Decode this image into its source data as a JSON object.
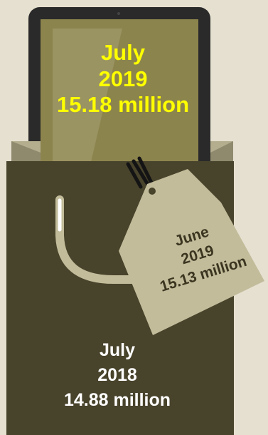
{
  "tablet": {
    "line1": "July",
    "line2": "2019",
    "line3": "15.18 million"
  },
  "tag": {
    "line1": "June",
    "line2": "2019",
    "line3": "15.13 million"
  },
  "bag": {
    "line1": "July",
    "line2": "2018",
    "line3": "14.88 million"
  },
  "colors": {
    "background": "#e6e0d0",
    "bag": "#48432b",
    "tablet_screen": "#8c844d",
    "tablet_bezel": "#2a2a2a",
    "tag": "#c2bc9b",
    "handle": "#c2bc9b",
    "tablet_text": "#ffff00",
    "bag_text": "#ffffff",
    "tag_text": "#3b3520"
  }
}
